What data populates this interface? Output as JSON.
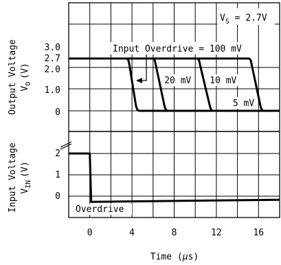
{
  "chart_data": {
    "type": "line",
    "x": {
      "label": "Time (μs)",
      "label_main": "Time (",
      "label_mu": "μ",
      "label_unit": "s)",
      "range": [
        -2,
        18
      ],
      "ticks": [
        0,
        4,
        8,
        12,
        16
      ]
    },
    "top_panel": {
      "ylabel_line1": "Output Voltage",
      "ylabel_sym": "V",
      "ylabel_sub": "O",
      "ylabel_unit": "(V)",
      "ticks": [
        {
          "label": "3.0",
          "value": 3.0
        },
        {
          "label": "2.7",
          "value": 2.7
        },
        {
          "label": "2.0",
          "value": 2.0
        },
        {
          "label": "1.0",
          "value": 1.0
        },
        {
          "label": "0",
          "value": 0.0
        }
      ],
      "annotation_vs_sym": "V",
      "annotation_vs_sub": "S",
      "annotation_vs_val": " = 2.7V",
      "annotation_title": "Input Overdrive = 100 mV",
      "series": [
        {
          "name": "100 mV",
          "label": "",
          "fall_start": 3.7,
          "fall_end": 4.5
        },
        {
          "name": "20 mV",
          "label": "20 mV",
          "fall_start": 6.2,
          "fall_end": 7.2
        },
        {
          "name": "10 mV",
          "label": "10 mV",
          "fall_start": 10.4,
          "fall_end": 11.5
        },
        {
          "name": "5 mV",
          "label": "5 mV",
          "fall_start": 15.3,
          "fall_end": 16.3
        }
      ],
      "high": 2.7,
      "low": 0.0
    },
    "bottom_panel": {
      "ylabel_line1": "Input Voltage",
      "ylabel_sym": "V",
      "ylabel_sub": "IN",
      "ylabel_unit": "(V)",
      "ticks": [
        {
          "label": "2",
          "value": 2
        },
        {
          "label": "1",
          "value": 1
        },
        {
          "label": "0",
          "value": 0
        }
      ],
      "label": "Overdrive",
      "step_time": 0.0,
      "high": 2.0,
      "low": -0.2
    }
  }
}
